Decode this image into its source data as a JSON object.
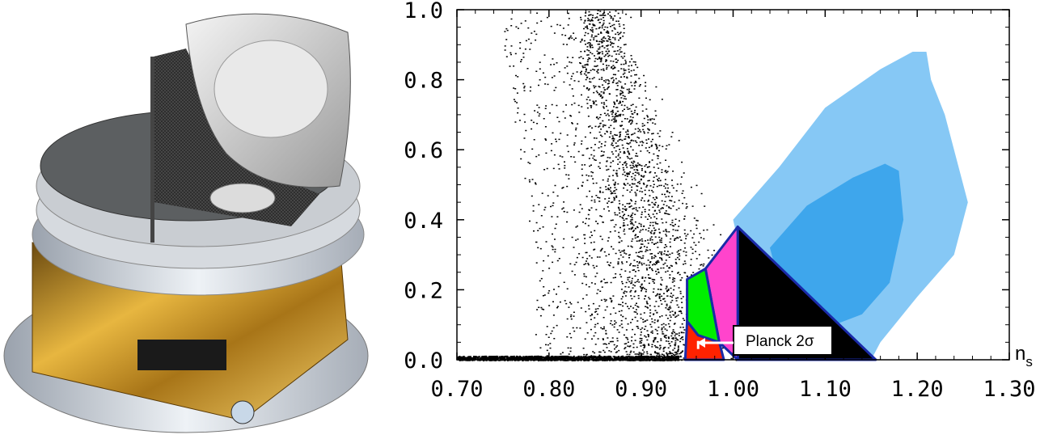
{
  "chart_data": {
    "type": "scatter",
    "xlabel": "n",
    "xlabel_sub": "s",
    "ylabel": "",
    "xlim": [
      0.7,
      1.3
    ],
    "ylim": [
      0.0,
      1.0
    ],
    "x_ticks": [
      "0.70",
      "0.80",
      "0.90",
      "1.00",
      "1.10",
      "1.20",
      "1.30"
    ],
    "y_ticks": [
      "0.0",
      "0.2",
      "0.4",
      "0.6",
      "0.8",
      "1.0"
    ],
    "grid": false,
    "annotation": "Planck 2σ",
    "scatter_points_ridge": [
      [
        0.855,
        1.0
      ],
      [
        0.86,
        0.9
      ],
      [
        0.87,
        0.8
      ],
      [
        0.88,
        0.7
      ],
      [
        0.89,
        0.6
      ],
      [
        0.9,
        0.5
      ],
      [
        0.91,
        0.4
      ],
      [
        0.92,
        0.3
      ],
      [
        0.925,
        0.2
      ],
      [
        0.93,
        0.1
      ],
      [
        0.935,
        0.0
      ]
    ],
    "contours": [
      {
        "level": "outer",
        "color": "#86c8f5",
        "points": [
          [
            1.0,
            0.4
          ],
          [
            1.05,
            0.55
          ],
          [
            1.1,
            0.72
          ],
          [
            1.16,
            0.83
          ],
          [
            1.195,
            0.88
          ],
          [
            1.21,
            0.88
          ],
          [
            1.215,
            0.8
          ],
          [
            1.23,
            0.7
          ],
          [
            1.255,
            0.45
          ],
          [
            1.24,
            0.3
          ],
          [
            1.2,
            0.18
          ],
          [
            1.16,
            0.05
          ],
          [
            1.15,
            0.0
          ],
          [
            1.09,
            0.0
          ],
          [
            1.03,
            0.05
          ]
        ]
      },
      {
        "level": "inner",
        "color": "#3ea6ec",
        "points": [
          [
            1.04,
            0.32
          ],
          [
            1.08,
            0.44
          ],
          [
            1.13,
            0.52
          ],
          [
            1.165,
            0.56
          ],
          [
            1.18,
            0.54
          ],
          [
            1.185,
            0.4
          ],
          [
            1.17,
            0.22
          ],
          [
            1.14,
            0.13
          ],
          [
            1.11,
            0.1
          ],
          [
            1.08,
            0.14
          ],
          [
            1.05,
            0.22
          ]
        ]
      }
    ],
    "regions": [
      {
        "color": "#000000",
        "points": [
          [
            1.005,
            0.38
          ],
          [
            1.155,
            0.0
          ],
          [
            1.005,
            0.0
          ]
        ]
      },
      {
        "color": "#ff44cc",
        "points": [
          [
            0.97,
            0.26
          ],
          [
            1.005,
            0.38
          ],
          [
            1.005,
            0.0
          ],
          [
            0.985,
            0.05
          ]
        ]
      },
      {
        "color": "#00ee00",
        "points": [
          [
            0.95,
            0.23
          ],
          [
            0.97,
            0.26
          ],
          [
            0.985,
            0.05
          ],
          [
            0.962,
            0.07
          ],
          [
            0.95,
            0.11
          ]
        ]
      },
      {
        "color": "#ff2200",
        "points": [
          [
            0.95,
            0.11
          ],
          [
            0.962,
            0.07
          ],
          [
            0.985,
            0.05
          ],
          [
            0.99,
            0.0
          ],
          [
            0.948,
            0.0
          ]
        ]
      }
    ],
    "outline_color": "#1a2aa8",
    "planck_marker": {
      "x": 0.962,
      "y": 0.04
    }
  }
}
